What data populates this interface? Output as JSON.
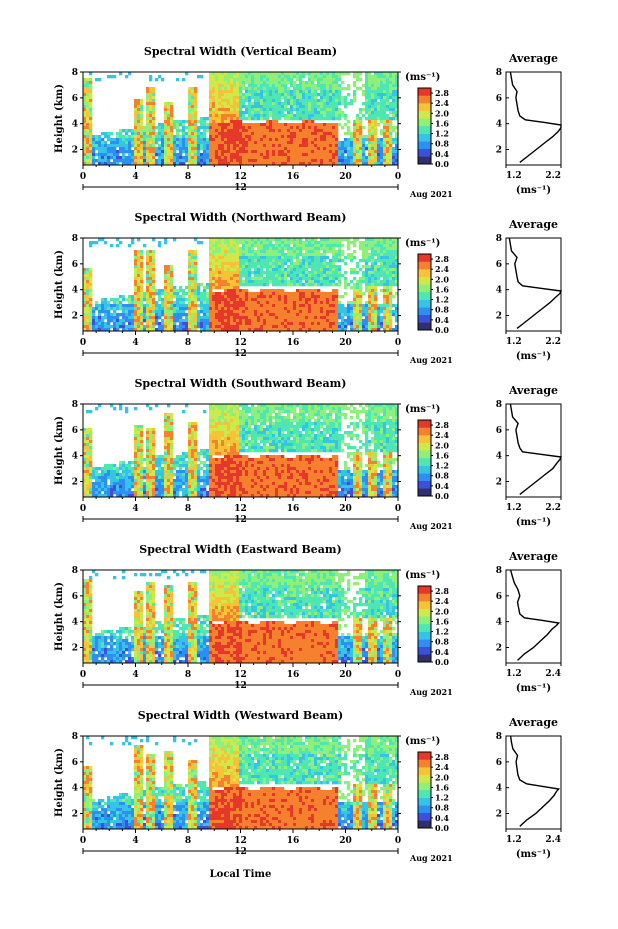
{
  "figure": {
    "x_axis_label": "Local Time",
    "date_label": "Aug 2021",
    "colorbar_unit": "(ms⁻¹)",
    "avg_unit": "(ms⁻¹)",
    "colors": {
      "scale": [
        "#30306e",
        "#3d50d8",
        "#2f8ef2",
        "#35c3e6",
        "#4ee6b2",
        "#8ef07a",
        "#cfe84a",
        "#f5c335",
        "#f5802e",
        "#e6382a"
      ]
    }
  },
  "chart_data": [
    {
      "type": "heatmap",
      "title": "Spectral Width (Vertical Beam)",
      "ylabel": "Height (km)",
      "x_ticks": [
        "0",
        "4",
        "8",
        "12",
        "16",
        "20",
        "0"
      ],
      "x_secondary_label": "12",
      "xlim": [
        0,
        24
      ],
      "y_ticks": [
        "2",
        "4",
        "6",
        "8"
      ],
      "ylim": [
        0.8,
        8
      ],
      "colorbar_ticks": [
        "0.0",
        "0.4",
        "0.8",
        "1.2",
        "1.6",
        "2.0",
        "2.4",
        "2.8"
      ],
      "colorbar_range": [
        0,
        3.0
      ],
      "features": {
        "high_region_x": [
          9.5,
          19.5
        ],
        "high_region_top": 4.1,
        "boundary_layer_y": [
          0.8,
          3.0
        ],
        "cloud_top": 8
      }
    },
    {
      "type": "line",
      "title": "Average",
      "xlabel": "(ms⁻¹)",
      "x_ticks": [
        "1.2",
        "2.2"
      ],
      "xlim": [
        1.2,
        2.2
      ],
      "y_ticks": [
        "2",
        "4",
        "6",
        "8"
      ],
      "ylim": [
        0.8,
        8
      ],
      "profile": {
        "height": [
          1.0,
          1.5,
          2.0,
          2.5,
          3.0,
          3.4,
          3.7,
          3.9,
          4.1,
          4.3,
          4.6,
          5.0,
          5.5,
          6.0,
          6.5,
          7.0,
          7.5,
          8.0
        ],
        "value": [
          1.45,
          1.6,
          1.75,
          1.9,
          2.05,
          2.15,
          2.2,
          2.22,
          1.9,
          1.55,
          1.45,
          1.42,
          1.4,
          1.38,
          1.4,
          1.32,
          1.3,
          1.28
        ]
      }
    },
    {
      "type": "heatmap",
      "title": "Spectral Width (Northward Beam)",
      "ylabel": "Height (km)",
      "x_ticks": [
        "0",
        "4",
        "8",
        "12",
        "16",
        "20",
        "0"
      ],
      "x_secondary_label": "12",
      "xlim": [
        0,
        24
      ],
      "y_ticks": [
        "2",
        "4",
        "6",
        "8"
      ],
      "ylim": [
        0.8,
        8
      ],
      "colorbar_ticks": [
        "0.0",
        "0.4",
        "0.8",
        "1.2",
        "1.6",
        "2.0",
        "2.4",
        "2.8"
      ],
      "colorbar_range": [
        0,
        3.0
      ],
      "features": {
        "high_region_x": [
          9.5,
          19.5
        ],
        "high_region_top": 4.0,
        "boundary_layer_y": [
          0.8,
          3.0
        ],
        "cloud_top": 8
      }
    },
    {
      "type": "line",
      "title": "Average",
      "xlabel": "(ms⁻¹)",
      "x_ticks": [
        "1.2",
        "2.2"
      ],
      "xlim": [
        1.2,
        2.2
      ],
      "y_ticks": [
        "2",
        "4",
        "6",
        "8"
      ],
      "ylim": [
        0.8,
        8
      ],
      "profile": {
        "height": [
          1.0,
          1.5,
          2.0,
          2.5,
          3.0,
          3.4,
          3.7,
          3.9,
          4.1,
          4.3,
          4.6,
          5.0,
          5.5,
          6.0,
          6.5,
          7.0,
          7.5,
          8.0
        ],
        "value": [
          1.4,
          1.55,
          1.7,
          1.85,
          2.0,
          2.1,
          2.18,
          2.2,
          1.85,
          1.5,
          1.42,
          1.4,
          1.38,
          1.36,
          1.4,
          1.3,
          1.28,
          1.26
        ]
      }
    },
    {
      "type": "heatmap",
      "title": "Spectral Width (Southward Beam)",
      "ylabel": "Height (km)",
      "x_ticks": [
        "0",
        "4",
        "8",
        "12",
        "16",
        "20",
        "0"
      ],
      "x_secondary_label": "12",
      "xlim": [
        0,
        24
      ],
      "y_ticks": [
        "2",
        "4",
        "6",
        "8"
      ],
      "ylim": [
        0.8,
        8
      ],
      "colorbar_ticks": [
        "0.0",
        "0.4",
        "0.8",
        "1.2",
        "1.6",
        "2.0",
        "2.4",
        "2.8"
      ],
      "colorbar_range": [
        0,
        3.0
      ],
      "features": {
        "high_region_x": [
          9.5,
          19.5
        ],
        "high_region_top": 4.0,
        "boundary_layer_y": [
          0.8,
          3.0
        ],
        "cloud_top": 8
      }
    },
    {
      "type": "line",
      "title": "Average",
      "xlabel": "(ms⁻¹)",
      "x_ticks": [
        "1.2",
        "2.2"
      ],
      "xlim": [
        1.2,
        2.2
      ],
      "y_ticks": [
        "2",
        "4",
        "6",
        "8"
      ],
      "ylim": [
        0.8,
        8
      ],
      "profile": {
        "height": [
          1.0,
          1.5,
          2.0,
          2.5,
          3.0,
          3.4,
          3.7,
          3.9,
          4.1,
          4.3,
          4.6,
          5.0,
          5.5,
          6.0,
          6.5,
          7.0,
          7.5,
          8.0
        ],
        "value": [
          1.45,
          1.6,
          1.75,
          1.9,
          2.05,
          2.12,
          2.18,
          2.2,
          1.85,
          1.5,
          1.45,
          1.42,
          1.4,
          1.38,
          1.42,
          1.32,
          1.3,
          1.28
        ]
      }
    },
    {
      "type": "heatmap",
      "title": "Spectral Width (Eastward Beam)",
      "ylabel": "Height (km)",
      "x_ticks": [
        "0",
        "4",
        "8",
        "12",
        "16",
        "20",
        "0"
      ],
      "x_secondary_label": "12",
      "xlim": [
        0,
        24
      ],
      "y_ticks": [
        "2",
        "4",
        "6",
        "8"
      ],
      "ylim": [
        0.8,
        8
      ],
      "colorbar_ticks": [
        "0.0",
        "0.4",
        "0.8",
        "1.2",
        "1.6",
        "2.0",
        "2.4",
        "2.8"
      ],
      "colorbar_range": [
        0,
        3.0
      ],
      "features": {
        "high_region_x": [
          9.5,
          19.5
        ],
        "high_region_top": 4.0,
        "boundary_layer_y": [
          0.8,
          3.0
        ],
        "cloud_top": 8
      }
    },
    {
      "type": "line",
      "title": "Average",
      "xlabel": "(ms⁻¹)",
      "x_ticks": [
        "1.2",
        "2.4"
      ],
      "xlim": [
        1.2,
        2.4
      ],
      "y_ticks": [
        "2",
        "4",
        "6",
        "8"
      ],
      "ylim": [
        0.8,
        8
      ],
      "profile": {
        "height": [
          1.0,
          1.5,
          2.0,
          2.5,
          3.0,
          3.4,
          3.7,
          3.9,
          4.1,
          4.3,
          4.6,
          5.0,
          5.5,
          6.0,
          6.5,
          7.0,
          7.5,
          8.0
        ],
        "value": [
          1.45,
          1.6,
          1.8,
          1.95,
          2.1,
          2.2,
          2.3,
          2.35,
          2.0,
          1.6,
          1.5,
          1.48,
          1.45,
          1.5,
          1.46,
          1.38,
          1.34,
          1.3
        ]
      }
    },
    {
      "type": "heatmap",
      "title": "Spectral Width (Westward Beam)",
      "ylabel": "Height (km)",
      "x_ticks": [
        "0",
        "4",
        "8",
        "12",
        "16",
        "20",
        "0"
      ],
      "x_secondary_label": "12",
      "xlim": [
        0,
        24
      ],
      "y_ticks": [
        "2",
        "4",
        "6",
        "8"
      ],
      "ylim": [
        0.8,
        8
      ],
      "colorbar_ticks": [
        "0.0",
        "0.4",
        "0.8",
        "1.2",
        "1.6",
        "2.0",
        "2.4",
        "2.8"
      ],
      "colorbar_range": [
        0,
        3.0
      ],
      "features": {
        "high_region_x": [
          9.5,
          19.5
        ],
        "high_region_top": 4.0,
        "boundary_layer_y": [
          0.8,
          3.0
        ],
        "cloud_top": 8
      }
    },
    {
      "type": "line",
      "title": "Average",
      "xlabel": "(ms⁻¹)",
      "x_ticks": [
        "1.2",
        "2.4"
      ],
      "xlim": [
        1.2,
        2.4
      ],
      "y_ticks": [
        "2",
        "4",
        "6",
        "8"
      ],
      "ylim": [
        0.8,
        8
      ],
      "profile": {
        "height": [
          1.0,
          1.5,
          2.0,
          2.5,
          3.0,
          3.4,
          3.7,
          3.9,
          4.1,
          4.3,
          4.6,
          5.0,
          5.5,
          6.0,
          6.5,
          7.0,
          7.5,
          8.0
        ],
        "value": [
          1.5,
          1.65,
          1.85,
          2.0,
          2.15,
          2.25,
          2.3,
          2.35,
          2.0,
          1.65,
          1.5,
          1.46,
          1.44,
          1.42,
          1.45,
          1.35,
          1.32,
          1.3
        ]
      }
    }
  ]
}
